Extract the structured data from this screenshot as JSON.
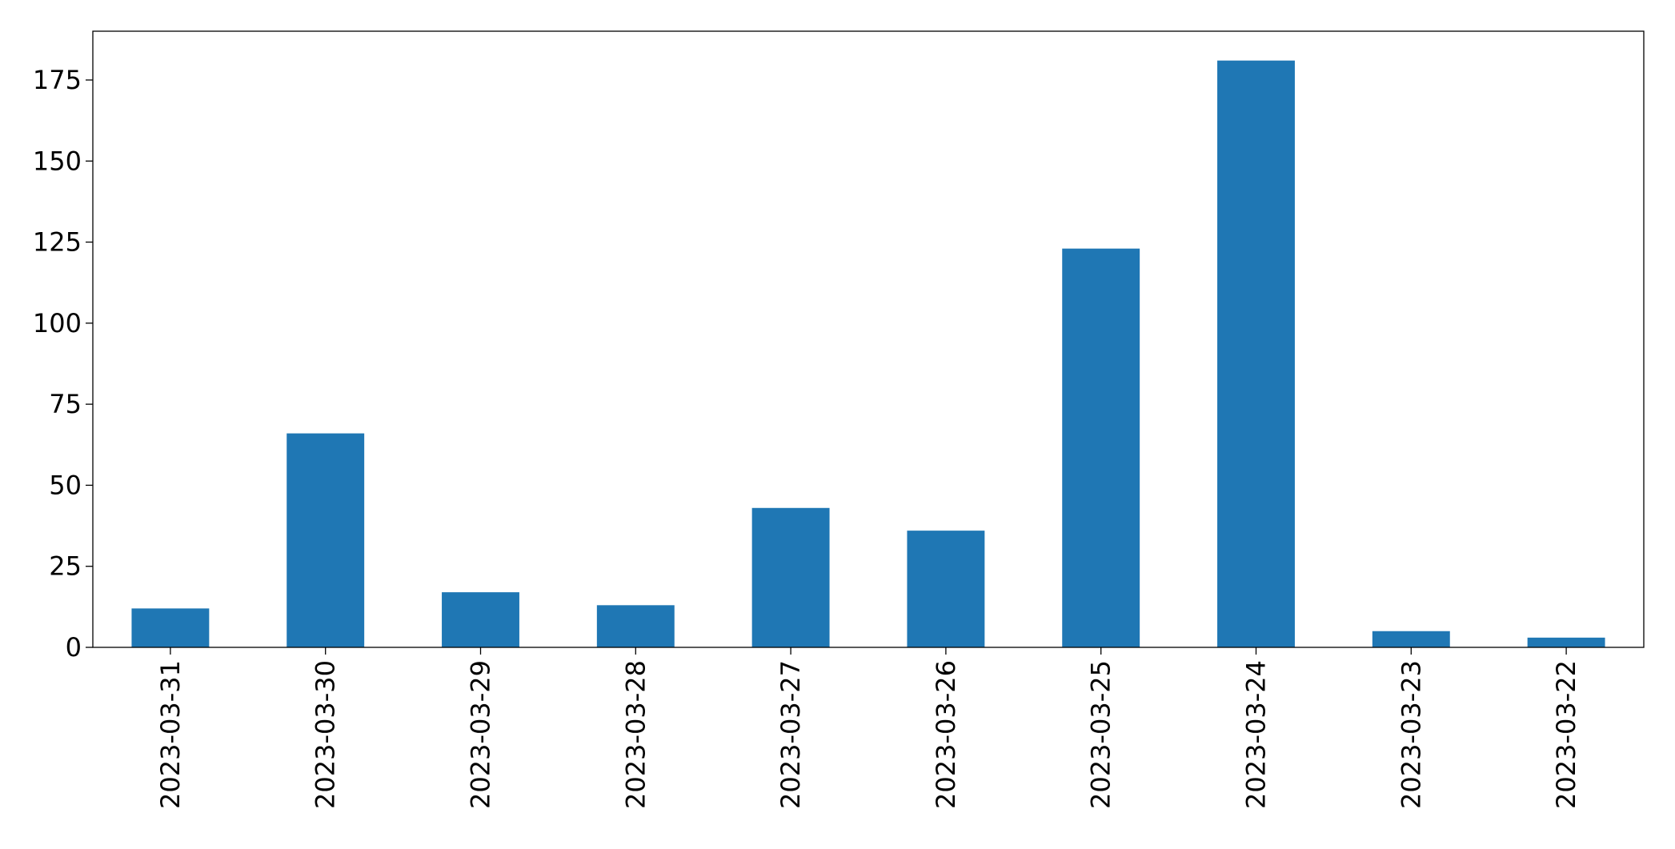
{
  "chart_data": {
    "type": "bar",
    "categories": [
      "2023-03-31",
      "2023-03-30",
      "2023-03-29",
      "2023-03-28",
      "2023-03-27",
      "2023-03-26",
      "2023-03-25",
      "2023-03-24",
      "2023-03-23",
      "2023-03-22"
    ],
    "values": [
      12,
      66,
      17,
      13,
      43,
      36,
      123,
      181,
      5,
      3
    ],
    "color": "#1f77b4",
    "ylim": [
      0,
      190.05
    ],
    "yticks": [
      0,
      25,
      50,
      75,
      100,
      125,
      150,
      175
    ],
    "grid": false
  }
}
